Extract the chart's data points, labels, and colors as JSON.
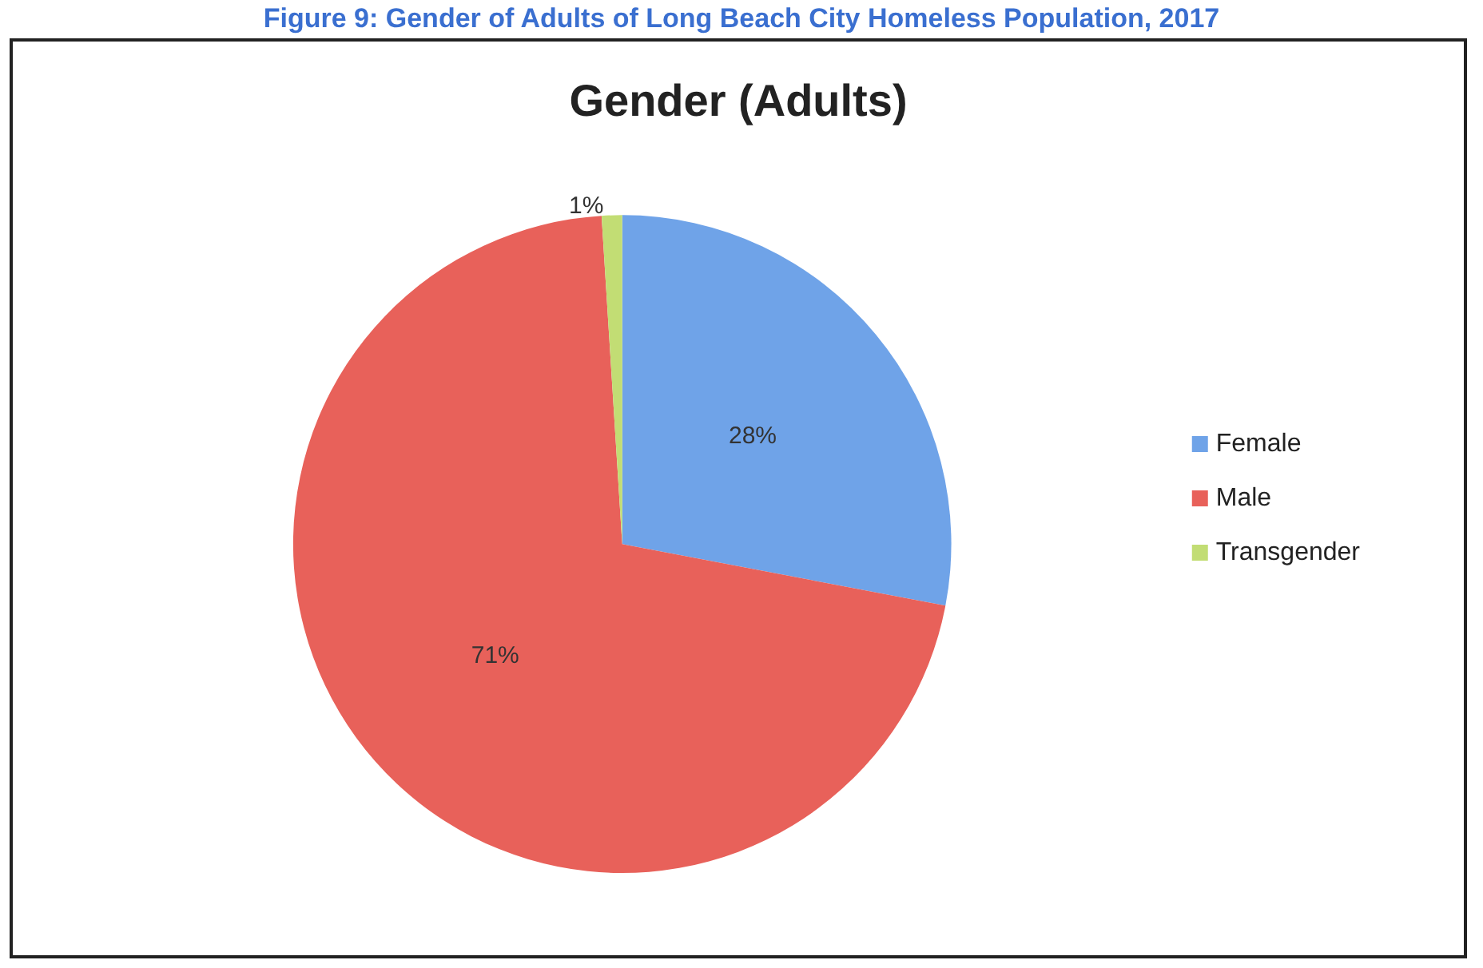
{
  "chart_data": {
    "type": "pie",
    "title": "Gender (Adults)",
    "subtitle": "Figure 9: Gender of Adults of Long Beach City Homeless Population, 2017",
    "categories": [
      "Female",
      "Male",
      "Transgender"
    ],
    "values": [
      28,
      71,
      1
    ],
    "colors": [
      "#6fa3e8",
      "#e8615a",
      "#c2dd74"
    ],
    "legend": "right",
    "value_labels": [
      "28%",
      "71%",
      "1%"
    ]
  }
}
